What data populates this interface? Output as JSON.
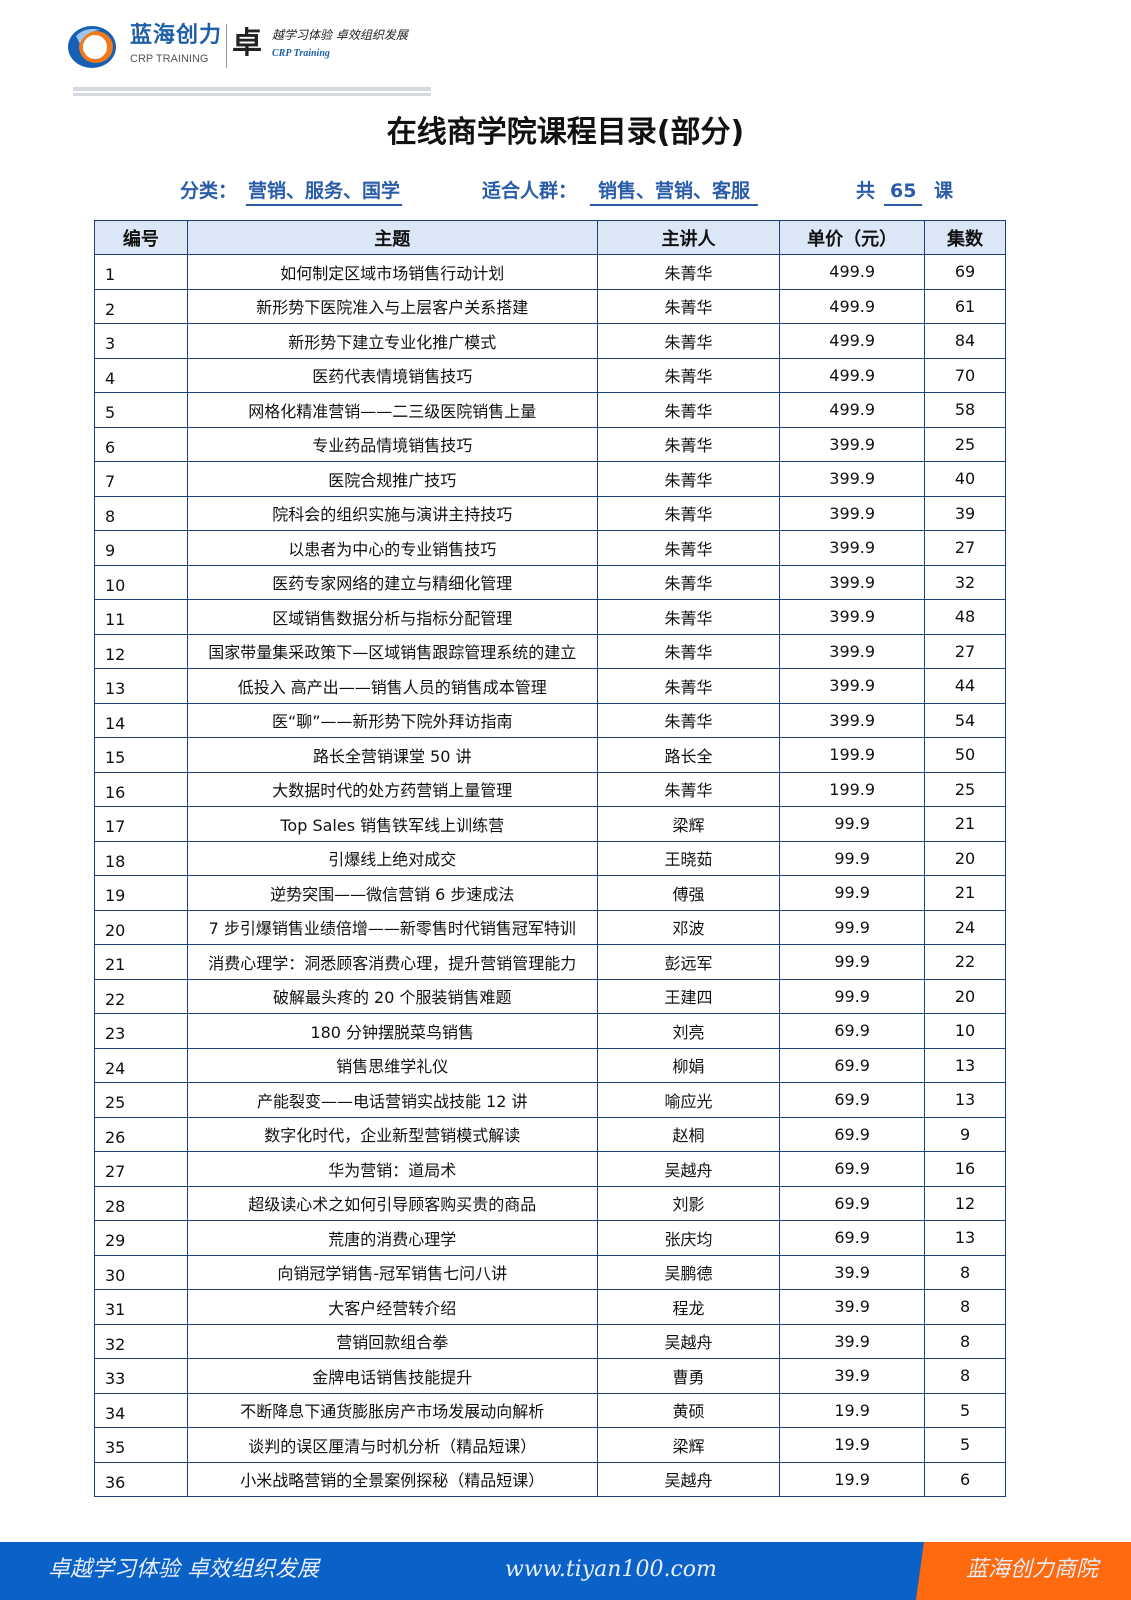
{
  "header": {
    "brand_cn": "蓝海创力",
    "brand_en": "CRP TRAINING",
    "zhuo": "卓",
    "slogan": "越学习体验 卓效组织发展",
    "slogan_en": "CRP Training"
  },
  "title": "在线商学院课程目录(部分)",
  "meta": {
    "category_label": "分类：",
    "category": "营销、服务、国学",
    "audience_label": "适合人群：",
    "audience": "销售、营销、客服",
    "total_prefix": "共",
    "total": "65",
    "total_suffix": "课"
  },
  "table": {
    "headers": [
      "编号",
      "主题",
      "主讲人",
      "单价（元）",
      "集数"
    ],
    "rows": [
      [
        "1",
        "如何制定区域市场销售行动计划",
        "朱菁华",
        "499.9",
        "69"
      ],
      [
        "2",
        "新形势下医院准入与上层客户关系搭建",
        "朱菁华",
        "499.9",
        "61"
      ],
      [
        "3",
        "新形势下建立专业化推广模式",
        "朱菁华",
        "499.9",
        "84"
      ],
      [
        "4",
        "医药代表情境销售技巧",
        "朱菁华",
        "499.9",
        "70"
      ],
      [
        "5",
        "网格化精准营销——二三级医院销售上量",
        "朱菁华",
        "499.9",
        "58"
      ],
      [
        "6",
        "专业药品情境销售技巧",
        "朱菁华",
        "399.9",
        "25"
      ],
      [
        "7",
        "医院合规推广技巧",
        "朱菁华",
        "399.9",
        "40"
      ],
      [
        "8",
        "院科会的组织实施与演讲主持技巧",
        "朱菁华",
        "399.9",
        "39"
      ],
      [
        "9",
        "以患者为中心的专业销售技巧",
        "朱菁华",
        "399.9",
        "27"
      ],
      [
        "10",
        "医药专家网络的建立与精细化管理",
        "朱菁华",
        "399.9",
        "32"
      ],
      [
        "11",
        "区域销售数据分析与指标分配管理",
        "朱菁华",
        "399.9",
        "48"
      ],
      [
        "12",
        "国家带量集采政策下—区域销售跟踪管理系统的建立",
        "朱菁华",
        "399.9",
        "27"
      ],
      [
        "13",
        "低投入 高产出——销售人员的销售成本管理",
        "朱菁华",
        "399.9",
        "44"
      ],
      [
        "14",
        "医“聊”——新形势下院外拜访指南",
        "朱菁华",
        "399.9",
        "54"
      ],
      [
        "15",
        "路长全营销课堂 50 讲",
        "路长全",
        "199.9",
        "50"
      ],
      [
        "16",
        "大数据时代的处方药营销上量管理",
        "朱菁华",
        "199.9",
        "25"
      ],
      [
        "17",
        "Top Sales 销售铁军线上训练营",
        "梁辉",
        "99.9",
        "21"
      ],
      [
        "18",
        "引爆线上绝对成交",
        "王晓茹",
        "99.9",
        "20"
      ],
      [
        "19",
        "逆势突围——微信营销 6 步速成法",
        "傅强",
        "99.9",
        "21"
      ],
      [
        "20",
        "7 步引爆销售业绩倍增——新零售时代销售冠军特训",
        "邓波",
        "99.9",
        "24"
      ],
      [
        "21",
        "消费心理学：洞悉顾客消费心理，提升营销管理能力",
        "彭远军",
        "99.9",
        "22"
      ],
      [
        "22",
        "破解最头疼的 20 个服装销售难题",
        "王建四",
        "99.9",
        "20"
      ],
      [
        "23",
        "180 分钟摆脱菜鸟销售",
        "刘亮",
        "69.9",
        "10"
      ],
      [
        "24",
        "销售思维学礼仪",
        "柳娟",
        "69.9",
        "13"
      ],
      [
        "25",
        "产能裂变——电话营销实战技能 12 讲",
        "喻应光",
        "69.9",
        "13"
      ],
      [
        "26",
        "数字化时代，企业新型营销模式解读",
        "赵桐",
        "69.9",
        "9"
      ],
      [
        "27",
        "华为营销：道局术",
        "吴越舟",
        "69.9",
        "16"
      ],
      [
        "28",
        "超级读心术之如何引导顾客购买贵的商品",
        "刘影",
        "69.9",
        "12"
      ],
      [
        "29",
        "荒唐的消费心理学",
        "张庆均",
        "69.9",
        "13"
      ],
      [
        "30",
        "向销冠学销售-冠军销售七问八讲",
        "吴鹏德",
        "39.9",
        "8"
      ],
      [
        "31",
        "大客户经营转介绍",
        "程龙",
        "39.9",
        "8"
      ],
      [
        "32",
        "营销回款组合拳",
        "吴越舟",
        "39.9",
        "8"
      ],
      [
        "33",
        "金牌电话销售技能提升",
        "曹勇",
        "39.9",
        "8"
      ],
      [
        "34",
        "不断降息下通货膨胀房产市场发展动向解析",
        "黄硕",
        "19.9",
        "5"
      ],
      [
        "35",
        "谈判的误区厘清与时机分析（精品短课）",
        "梁辉",
        "19.9",
        "5"
      ],
      [
        "36",
        "小米战略营销的全景案例探秘（精品短课）",
        "吴越舟",
        "19.9",
        "6"
      ]
    ]
  },
  "footer": {
    "slogan": "卓越学习体验  卓效组织发展",
    "url": "www.tiyan100.com",
    "brand": "蓝海创力商院"
  },
  "colors": {
    "accent": "#2a5ca8",
    "header_bg": "#dbe7f6",
    "footer_blue": "#0a62c9",
    "footer_orange": "#ff6a0e"
  }
}
